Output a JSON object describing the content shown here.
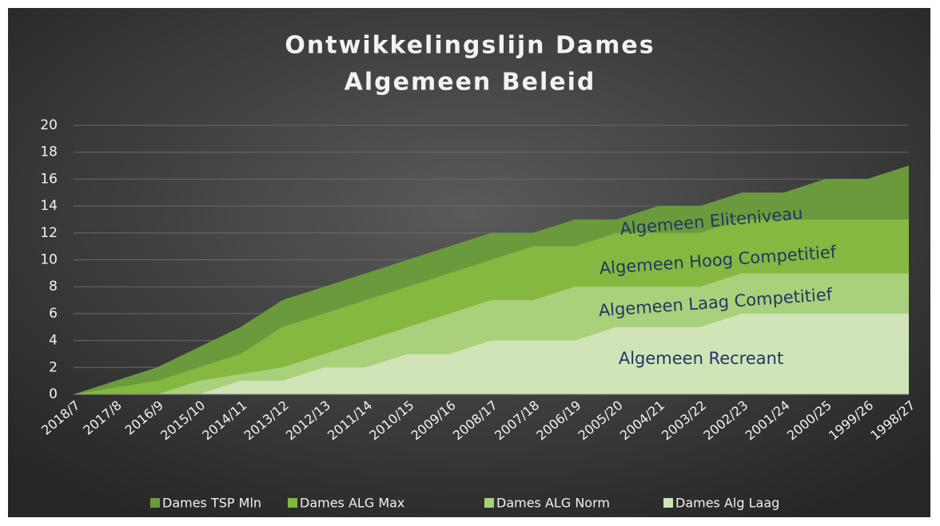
{
  "chart_data": {
    "type": "area",
    "title": [
      "Ontwikkelingslijn Dames",
      "Algemeen Beleid"
    ],
    "categories": [
      "2018/7",
      "2017/8",
      "2016/9",
      "2015/10",
      "2014/11",
      "2013/12",
      "2012/13",
      "2011/14",
      "2010/15",
      "2009/16",
      "2008/17",
      "2007/18",
      "2006/19",
      "2005/20",
      "2004/21",
      "2003/22",
      "2002/23",
      "2001/24",
      "2000/25",
      "1999/26",
      "1998/27"
    ],
    "series": [
      {
        "name": "Dames TSP Mln",
        "color": "#6b9a3c",
        "values": [
          0,
          1,
          2,
          3.5,
          5,
          7,
          8,
          9,
          10,
          11,
          12,
          12,
          13,
          13,
          14,
          14,
          15,
          15,
          16,
          16,
          17
        ]
      },
      {
        "name": "Dames ALG Max",
        "color": "#84b840",
        "values": [
          0,
          0.5,
          1,
          2,
          3,
          5,
          6,
          7,
          8,
          9,
          10,
          11,
          11,
          12,
          12,
          12,
          13,
          13,
          13,
          13,
          13
        ]
      },
      {
        "name": "Dames ALG Norm",
        "color": "#a9d07a",
        "values": [
          0,
          0,
          0,
          1,
          1.5,
          2,
          3,
          4,
          5,
          6,
          7,
          7,
          8,
          8,
          8,
          8,
          9,
          9,
          9,
          9,
          9
        ]
      },
      {
        "name": "Dames Alg Laag",
        "color": "#d0e4b8",
        "values": [
          0,
          0,
          0,
          0,
          1,
          1,
          2,
          2,
          3,
          3,
          4,
          4,
          4,
          5,
          5,
          5,
          6,
          6,
          6,
          6,
          6
        ]
      }
    ],
    "annotations": [
      "Algemeen Eliteniveau",
      "Algemeen Hoog Competitief",
      "Algemeen Laag Competitief",
      "Algemeen Recreant"
    ],
    "ylim": [
      0,
      20
    ],
    "yticks": [
      0,
      2,
      4,
      6,
      8,
      10,
      12,
      14,
      16,
      18,
      20
    ],
    "grid": true,
    "legend": "bottom"
  }
}
